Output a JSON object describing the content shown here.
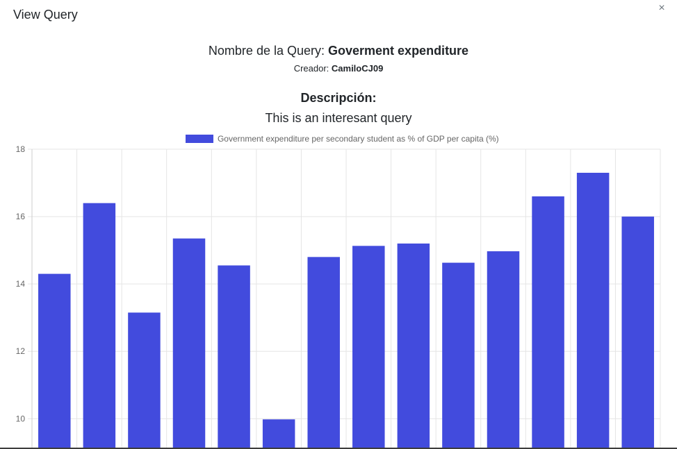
{
  "modal": {
    "title": "View Query",
    "close_glyph": "×"
  },
  "query": {
    "name_label": "Nombre de la Query:",
    "name_value": "Goverment expenditure",
    "creator_label": "Creador:",
    "creator_value": "CamiloCJ09",
    "description_title": "Descripción:",
    "description_text": "This is an interesant query"
  },
  "chart_data": {
    "type": "bar",
    "title": "",
    "xlabel": "",
    "ylabel": "",
    "ylim": [
      9.1,
      18
    ],
    "yticks": [
      10,
      12,
      14,
      16,
      18
    ],
    "grid": true,
    "legend_position": "top",
    "bar_color": "#424bdd",
    "series": [
      {
        "name": "Government expenditure per secondary student as % of GDP per capita (%)",
        "values": [
          14.3,
          16.4,
          13.15,
          15.35,
          14.55,
          9.98,
          14.8,
          15.13,
          15.2,
          14.63,
          14.97,
          16.6,
          17.3,
          16.0
        ]
      }
    ]
  }
}
